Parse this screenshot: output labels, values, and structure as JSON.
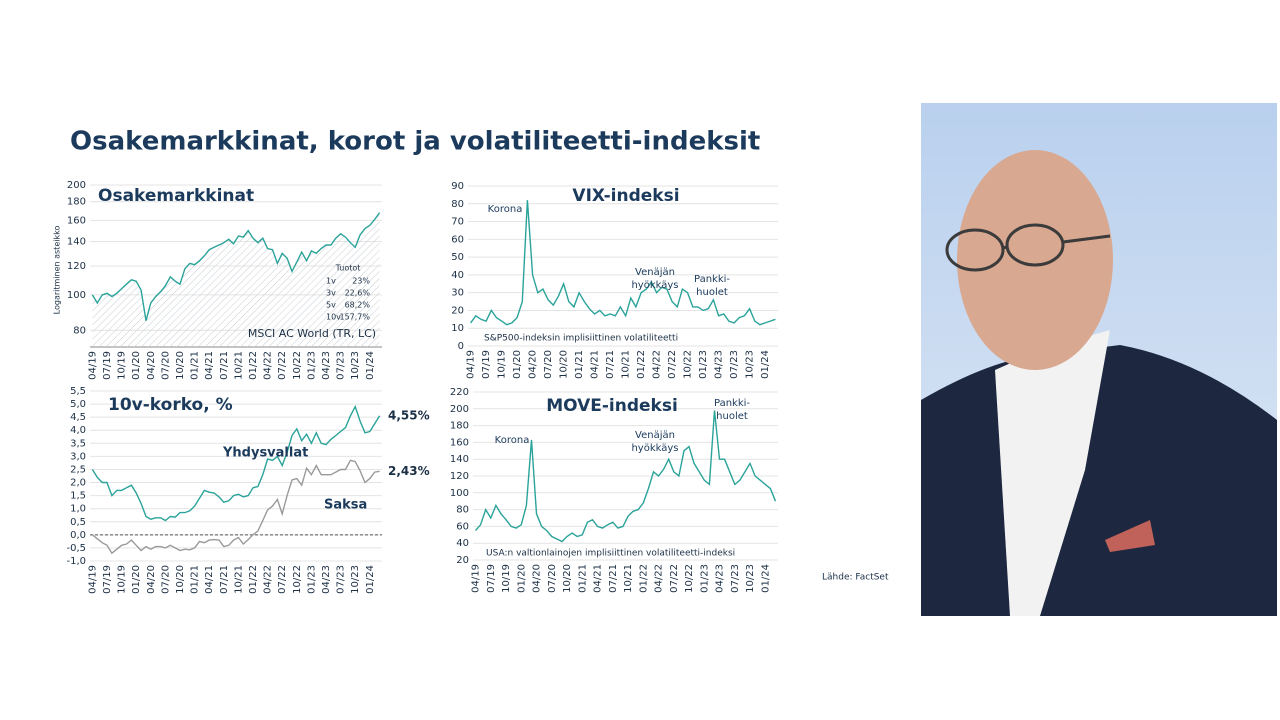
{
  "slide": {
    "title": "Osakemarkkinat, korot ja volatiliteetti-indeksit",
    "source": "Lähde: FactSet"
  },
  "chart_data": [
    {
      "type": "line",
      "title": "Osakemarkkinat",
      "y_label": "Logaritminen asteikko",
      "log": true,
      "grid": true,
      "area": true,
      "ylim": [
        72,
        200
      ],
      "yticks": [
        80,
        100,
        120,
        140,
        160,
        180,
        200
      ],
      "color": "#2aa39a",
      "categories": [
        "04/19",
        null,
        null,
        "07/19",
        null,
        null,
        "10/19",
        null,
        null,
        "01/20",
        null,
        null,
        "04/20",
        null,
        null,
        "07/20",
        null,
        null,
        "10/20",
        null,
        null,
        "01/21",
        null,
        null,
        "04/21",
        null,
        null,
        "07/21",
        null,
        null,
        "10/21",
        null,
        null,
        "01/22",
        null,
        null,
        "04/22",
        null,
        null,
        "07/22",
        null,
        null,
        "10/22",
        null,
        null,
        "01/23",
        null,
        null,
        "04/23",
        null,
        null,
        "07/23",
        null,
        null,
        "10/23",
        null,
        null,
        "01/24",
        null,
        null
      ],
      "values": [
        100,
        95,
        100,
        101,
        99,
        101,
        104,
        107,
        110,
        109,
        103,
        85,
        95,
        99,
        102,
        106,
        112,
        109,
        107,
        118,
        122,
        121,
        124,
        128,
        133,
        135,
        137,
        139,
        142,
        138,
        145,
        144,
        150,
        143,
        139,
        143,
        134,
        133,
        122,
        130,
        126,
        116,
        123,
        131,
        124,
        132,
        130,
        134,
        137,
        137,
        143,
        147,
        144,
        139,
        135,
        146,
        152,
        155,
        161,
        168
      ],
      "returns": {
        "title": "Tuotot",
        "rows": [
          [
            "1v",
            "23%"
          ],
          [
            "3v",
            "22,6%"
          ],
          [
            "5v",
            "68,2%"
          ],
          [
            "10v",
            "157,7%"
          ]
        ]
      },
      "note": "MSCI AC World (TR, LC)"
    },
    {
      "type": "line",
      "title": "VIX-indeksi",
      "grid": true,
      "ylim": [
        0,
        90
      ],
      "yticks": [
        0,
        10,
        20,
        30,
        40,
        50,
        60,
        70,
        80,
        90
      ],
      "color": "#2aa39a",
      "categories": [
        "04/19",
        null,
        null,
        "07/19",
        null,
        null,
        "10/19",
        null,
        null,
        "01/20",
        null,
        null,
        "04/20",
        null,
        null,
        "07/20",
        null,
        null,
        "10/20",
        null,
        null,
        "01/21",
        null,
        null,
        "04/21",
        null,
        null,
        "07/21",
        null,
        null,
        "10/21",
        null,
        null,
        "01/22",
        null,
        null,
        "04/22",
        null,
        null,
        "07/22",
        null,
        null,
        "10/22",
        null,
        null,
        "01/23",
        null,
        null,
        "04/23",
        null,
        null,
        "07/23",
        null,
        null,
        "10/23",
        null,
        null,
        "01/24",
        null,
        null
      ],
      "values": [
        13,
        17,
        15,
        14,
        20,
        16,
        14,
        12,
        13,
        16,
        25,
        82,
        40,
        30,
        32,
        26,
        23,
        28,
        35,
        25,
        22,
        30,
        25,
        21,
        18,
        20,
        17,
        18,
        17,
        22,
        17,
        27,
        22,
        30,
        32,
        36,
        30,
        33,
        32,
        25,
        22,
        32,
        30,
        22,
        22,
        20,
        21,
        26,
        17,
        18,
        14,
        13,
        16,
        17,
        21,
        14,
        12,
        13,
        14,
        15
      ],
      "annotations": [
        [
          "Korona"
        ],
        [
          "Venäjän",
          "hyökkäys"
        ],
        [
          "Pankki-",
          "huolet"
        ]
      ],
      "note": "S&P500-indeksin implisiittinen volatiliteetti"
    },
    {
      "type": "line",
      "title": "10v-korko, %",
      "grid": true,
      "ref_line": 0,
      "ylim": [
        -1,
        5.5
      ],
      "yticks": [
        {
          "value": -1,
          "label": "-1,0"
        },
        {
          "value": -0.5,
          "label": "-0,5"
        },
        {
          "value": 0,
          "label": "0,0"
        },
        {
          "value": 0.5,
          "label": "0,5"
        },
        {
          "value": 1,
          "label": "1,0"
        },
        {
          "value": 1.5,
          "label": "1,5"
        },
        {
          "value": 2,
          "label": "2,0"
        },
        {
          "value": 2.5,
          "label": "2,5"
        },
        {
          "value": 3,
          "label": "3,0"
        },
        {
          "value": 3.5,
          "label": "3,5"
        },
        {
          "value": 4,
          "label": "4,0"
        },
        {
          "value": 4.5,
          "label": "4,5"
        },
        {
          "value": 5,
          "label": "5,0"
        },
        {
          "value": 5.5,
          "label": "5,5"
        }
      ],
      "categories": [
        "04/19",
        null,
        null,
        "07/19",
        null,
        null,
        "10/19",
        null,
        null,
        "01/20",
        null,
        null,
        "04/20",
        null,
        null,
        "07/20",
        null,
        null,
        "10/20",
        null,
        null,
        "01/21",
        null,
        null,
        "04/21",
        null,
        null,
        "07/21",
        null,
        null,
        "10/21",
        null,
        null,
        "01/22",
        null,
        null,
        "04/22",
        null,
        null,
        "07/22",
        null,
        null,
        "10/22",
        null,
        null,
        "01/23",
        null,
        null,
        "04/23",
        null,
        null,
        "07/23",
        null,
        null,
        "10/23",
        null,
        null,
        "01/24",
        null,
        null
      ],
      "series": [
        {
          "name": "Yhdysvallat",
          "color": "#2aa39a",
          "last_label": "4,55%",
          "values": [
            2.5,
            2.2,
            2.0,
            2.0,
            1.5,
            1.7,
            1.7,
            1.8,
            1.9,
            1.6,
            1.2,
            0.7,
            0.6,
            0.65,
            0.65,
            0.55,
            0.7,
            0.68,
            0.85,
            0.85,
            0.92,
            1.1,
            1.4,
            1.7,
            1.63,
            1.6,
            1.45,
            1.25,
            1.3,
            1.5,
            1.55,
            1.45,
            1.5,
            1.8,
            1.85,
            2.3,
            2.9,
            2.85,
            3.0,
            2.65,
            3.15,
            3.8,
            4.05,
            3.6,
            3.85,
            3.5,
            3.9,
            3.5,
            3.45,
            3.65,
            3.8,
            3.95,
            4.1,
            4.55,
            4.9,
            4.35,
            3.9,
            3.95,
            4.25,
            4.55
          ]
        },
        {
          "name": "Saksa",
          "color": "#9a9a9a",
          "last_label": "2,43%",
          "values": [
            0.0,
            -0.15,
            -0.3,
            -0.4,
            -0.7,
            -0.55,
            -0.4,
            -0.35,
            -0.2,
            -0.4,
            -0.6,
            -0.45,
            -0.55,
            -0.45,
            -0.45,
            -0.5,
            -0.4,
            -0.5,
            -0.6,
            -0.55,
            -0.57,
            -0.5,
            -0.25,
            -0.3,
            -0.2,
            -0.18,
            -0.2,
            -0.45,
            -0.4,
            -0.2,
            -0.1,
            -0.35,
            -0.18,
            0.0,
            0.15,
            0.55,
            0.95,
            1.1,
            1.35,
            0.8,
            1.5,
            2.1,
            2.15,
            1.9,
            2.55,
            2.3,
            2.65,
            2.3,
            2.3,
            2.3,
            2.4,
            2.5,
            2.5,
            2.85,
            2.8,
            2.45,
            2.0,
            2.15,
            2.4,
            2.43
          ]
        }
      ]
    },
    {
      "type": "line",
      "title": "MOVE-indeksi",
      "grid": true,
      "ylim": [
        20,
        220
      ],
      "yticks": [
        20,
        40,
        60,
        80,
        100,
        120,
        140,
        160,
        180,
        200,
        220
      ],
      "color": "#2aa39a",
      "categories": [
        "04/19",
        null,
        null,
        "07/19",
        null,
        null,
        "10/19",
        null,
        null,
        "01/20",
        null,
        null,
        "04/20",
        null,
        null,
        "07/20",
        null,
        null,
        "10/20",
        null,
        null,
        "01/21",
        null,
        null,
        "04/21",
        null,
        null,
        "07/21",
        null,
        null,
        "10/21",
        null,
        null,
        "01/22",
        null,
        null,
        "04/22",
        null,
        null,
        "07/22",
        null,
        null,
        "10/22",
        null,
        null,
        "01/23",
        null,
        null,
        "04/23",
        null,
        null,
        "07/23",
        null,
        null,
        "10/23",
        null,
        null,
        "01/24",
        null,
        null
      ],
      "values": [
        55,
        62,
        80,
        70,
        85,
        75,
        68,
        60,
        58,
        62,
        85,
        163,
        75,
        60,
        55,
        48,
        45,
        42,
        48,
        52,
        48,
        50,
        65,
        68,
        60,
        58,
        62,
        65,
        58,
        60,
        72,
        78,
        80,
        88,
        105,
        125,
        120,
        128,
        140,
        125,
        120,
        150,
        155,
        135,
        125,
        115,
        110,
        198,
        140,
        140,
        125,
        110,
        115,
        125,
        135,
        120,
        115,
        110,
        105,
        90
      ],
      "annotations": [
        [
          "Korona"
        ],
        [
          "Venäjän",
          "hyökkäys"
        ],
        [
          "Pankki-",
          "huolet"
        ]
      ],
      "note": "USA:n valtionlainojen implisiittinen volatiliteetti-indeksi"
    }
  ]
}
